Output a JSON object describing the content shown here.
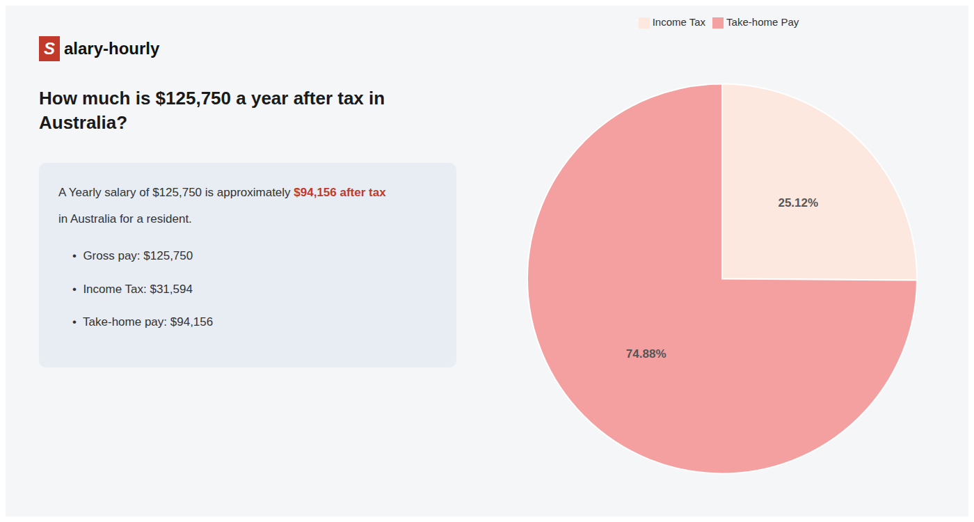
{
  "chart_data": {
    "type": "pie",
    "title": "How much is $125,750 a year after tax in Australia?",
    "categories": [
      "Income Tax",
      "Take-home Pay"
    ],
    "values": [
      25.12,
      74.88
    ],
    "value_labels": [
      "25.12%",
      "74.88%"
    ],
    "data_labels": true,
    "colors": [
      "#fce8df",
      "#f4a0a0"
    ],
    "annotations": [
      "S",
      "alary-hourly",
      "A Yearly salary of $125,750 is approximately ",
      "$94,156 after tax",
      "in Australia for a resident.",
      "•  Gross pay: $125,750",
      "•  Income Tax: $31,594",
      "•  Take-home pay: $94,156"
    ]
  }
}
